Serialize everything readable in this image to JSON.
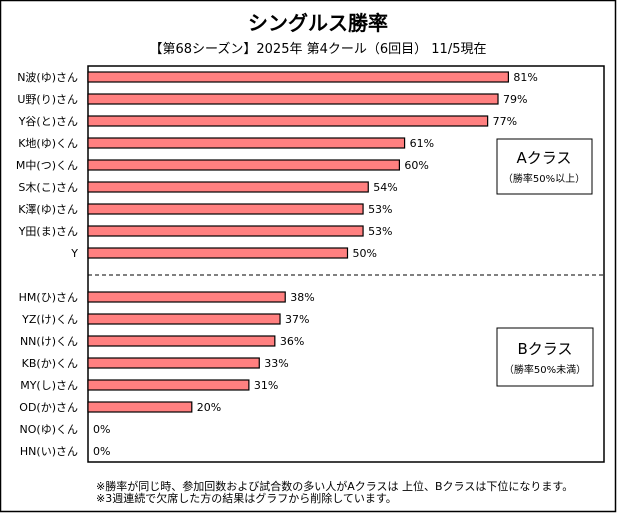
{
  "chart_data": {
    "type": "bar",
    "orientation": "horizontal",
    "title": "シングルス勝率",
    "subtitle": "【第68シーズン】2025年 第4クール（6回目） 11/5現在",
    "xlabel": "",
    "ylabel": "",
    "xlim": [
      0,
      100
    ],
    "unit": "%",
    "grid": false,
    "bar_color": "#FF8080",
    "categories": [
      "N波(ゆ)さん",
      "U野(り)さん",
      "Y谷(と)さん",
      "K地(ゆ)くん",
      "M中(つ)くん",
      "S木(こ)さん",
      "K澤(ゆ)さん",
      "Y田(ま)さん",
      "Y",
      "",
      "HM(ひ)さん",
      "YZ(け)くん",
      "NN(け)くん",
      "KB(か)くん",
      "MY(し)さん",
      "OD(か)さん",
      "NO(ゆ)くん",
      "HN(い)さん"
    ],
    "values": [
      81,
      79,
      77,
      61,
      60,
      54,
      53,
      53,
      50,
      null,
      38,
      37,
      36,
      33,
      31,
      20,
      0,
      0
    ],
    "value_labels": [
      "81%",
      "79%",
      "77%",
      "61%",
      "60%",
      "54%",
      "53%",
      "53%",
      "50%",
      "",
      "38%",
      "37%",
      "36%",
      "33%",
      "31%",
      "20%",
      "0%",
      "0%"
    ],
    "separator": "dashed line between Y and HM(ひ)さん",
    "annotations": [
      {
        "class": "A",
        "title": "Aクラス",
        "note": "（勝率50%以上）",
        "placement": "right of A group"
      },
      {
        "class": "B",
        "title": "Bクラス",
        "note": "（勝率50%未満）",
        "placement": "right of B group"
      }
    ],
    "footnotes": [
      "※勝率が同じ時、参加回数および試合数の多い人がAクラスは 上位、Bクラスは下位になります。",
      "※3週連続で欠席した方の結果はグラフから削除しています。"
    ]
  }
}
